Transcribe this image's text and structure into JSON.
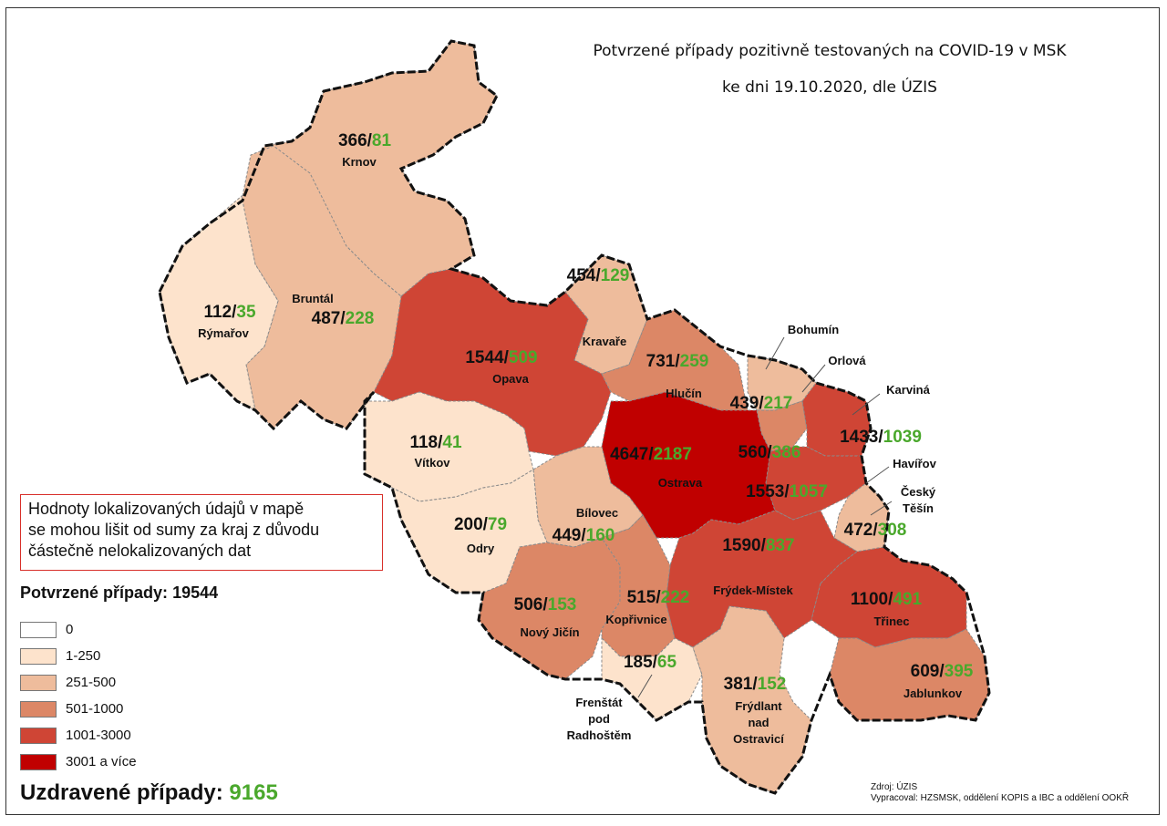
{
  "title_line1": "Potvrzené případy pozitivně testovaných na COVID-19 v MSK",
  "title_line2": "ke dni 19.10.2020, dle ÚZIS",
  "note": [
    "Hodnoty lokalizovaných údajů v mapě",
    "se mohou lišit od sumy za kraj z důvodu",
    "částečně nelokalizovaných dat"
  ],
  "confirmed_label": "Potvrzené případy:",
  "confirmed_value": "19544",
  "recovered_label": "Uzdravené případy:",
  "recovered_value": "9165",
  "legend": [
    {
      "label": "0",
      "color": "#ffffff"
    },
    {
      "label": "1-250",
      "color": "#fde3cc"
    },
    {
      "label": "251-500",
      "color": "#eebc9c"
    },
    {
      "label": "501-1000",
      "color": "#dc8766"
    },
    {
      "label": "1001-3000",
      "color": "#cf4535"
    },
    {
      "label": "3001 a více",
      "color": "#c00000"
    }
  ],
  "source_line1": "Zdroj: ÚZIS",
  "source_line2": "Vypracoval: HZSMSK, oddělení KOPIS a IBC a oddělení OOKŘ",
  "districts": [
    {
      "name": "Krnov",
      "confirmed": "366",
      "recovered": "81"
    },
    {
      "name": "Bruntál",
      "confirmed": "487",
      "recovered": "228"
    },
    {
      "name": "Rýmařov",
      "confirmed": "112",
      "recovered": "35"
    },
    {
      "name": "Kravaře",
      "confirmed": "454",
      "recovered": "129"
    },
    {
      "name": "Opava",
      "confirmed": "1544",
      "recovered": "509"
    },
    {
      "name": "Hlučín",
      "confirmed": "731",
      "recovered": "259"
    },
    {
      "name": "Bohumín",
      "confirmed": "439",
      "recovered": "217"
    },
    {
      "name": "Orlová",
      "confirmed": "560",
      "recovered": "386"
    },
    {
      "name": "Karviná",
      "confirmed": "1433",
      "recovered": "1039"
    },
    {
      "name": "Havířov",
      "confirmed": "1553",
      "recovered": "1057"
    },
    {
      "name": "Český Těšín",
      "confirmed": "472",
      "recovered": "308"
    },
    {
      "name": "Vítkov",
      "confirmed": "118",
      "recovered": "41"
    },
    {
      "name": "Ostrava",
      "confirmed": "4647",
      "recovered": "2187"
    },
    {
      "name": "Bílovec",
      "confirmed": "449",
      "recovered": "160"
    },
    {
      "name": "Odry",
      "confirmed": "200",
      "recovered": "79"
    },
    {
      "name": "Frýdek-Místek",
      "confirmed": "1590",
      "recovered": "837"
    },
    {
      "name": "Nový Jičín",
      "confirmed": "506",
      "recovered": "153"
    },
    {
      "name": "Kopřivnice",
      "confirmed": "515",
      "recovered": "222"
    },
    {
      "name": "Třinec",
      "confirmed": "1100",
      "recovered": "491"
    },
    {
      "name": "Frenštát pod Radhoštěm",
      "confirmed": "185",
      "recovered": "65"
    },
    {
      "name": "Frýdlant nad Ostravicí",
      "confirmed": "381",
      "recovered": "152"
    },
    {
      "name": "Jablunkov",
      "confirmed": "609",
      "recovered": "395"
    }
  ]
}
